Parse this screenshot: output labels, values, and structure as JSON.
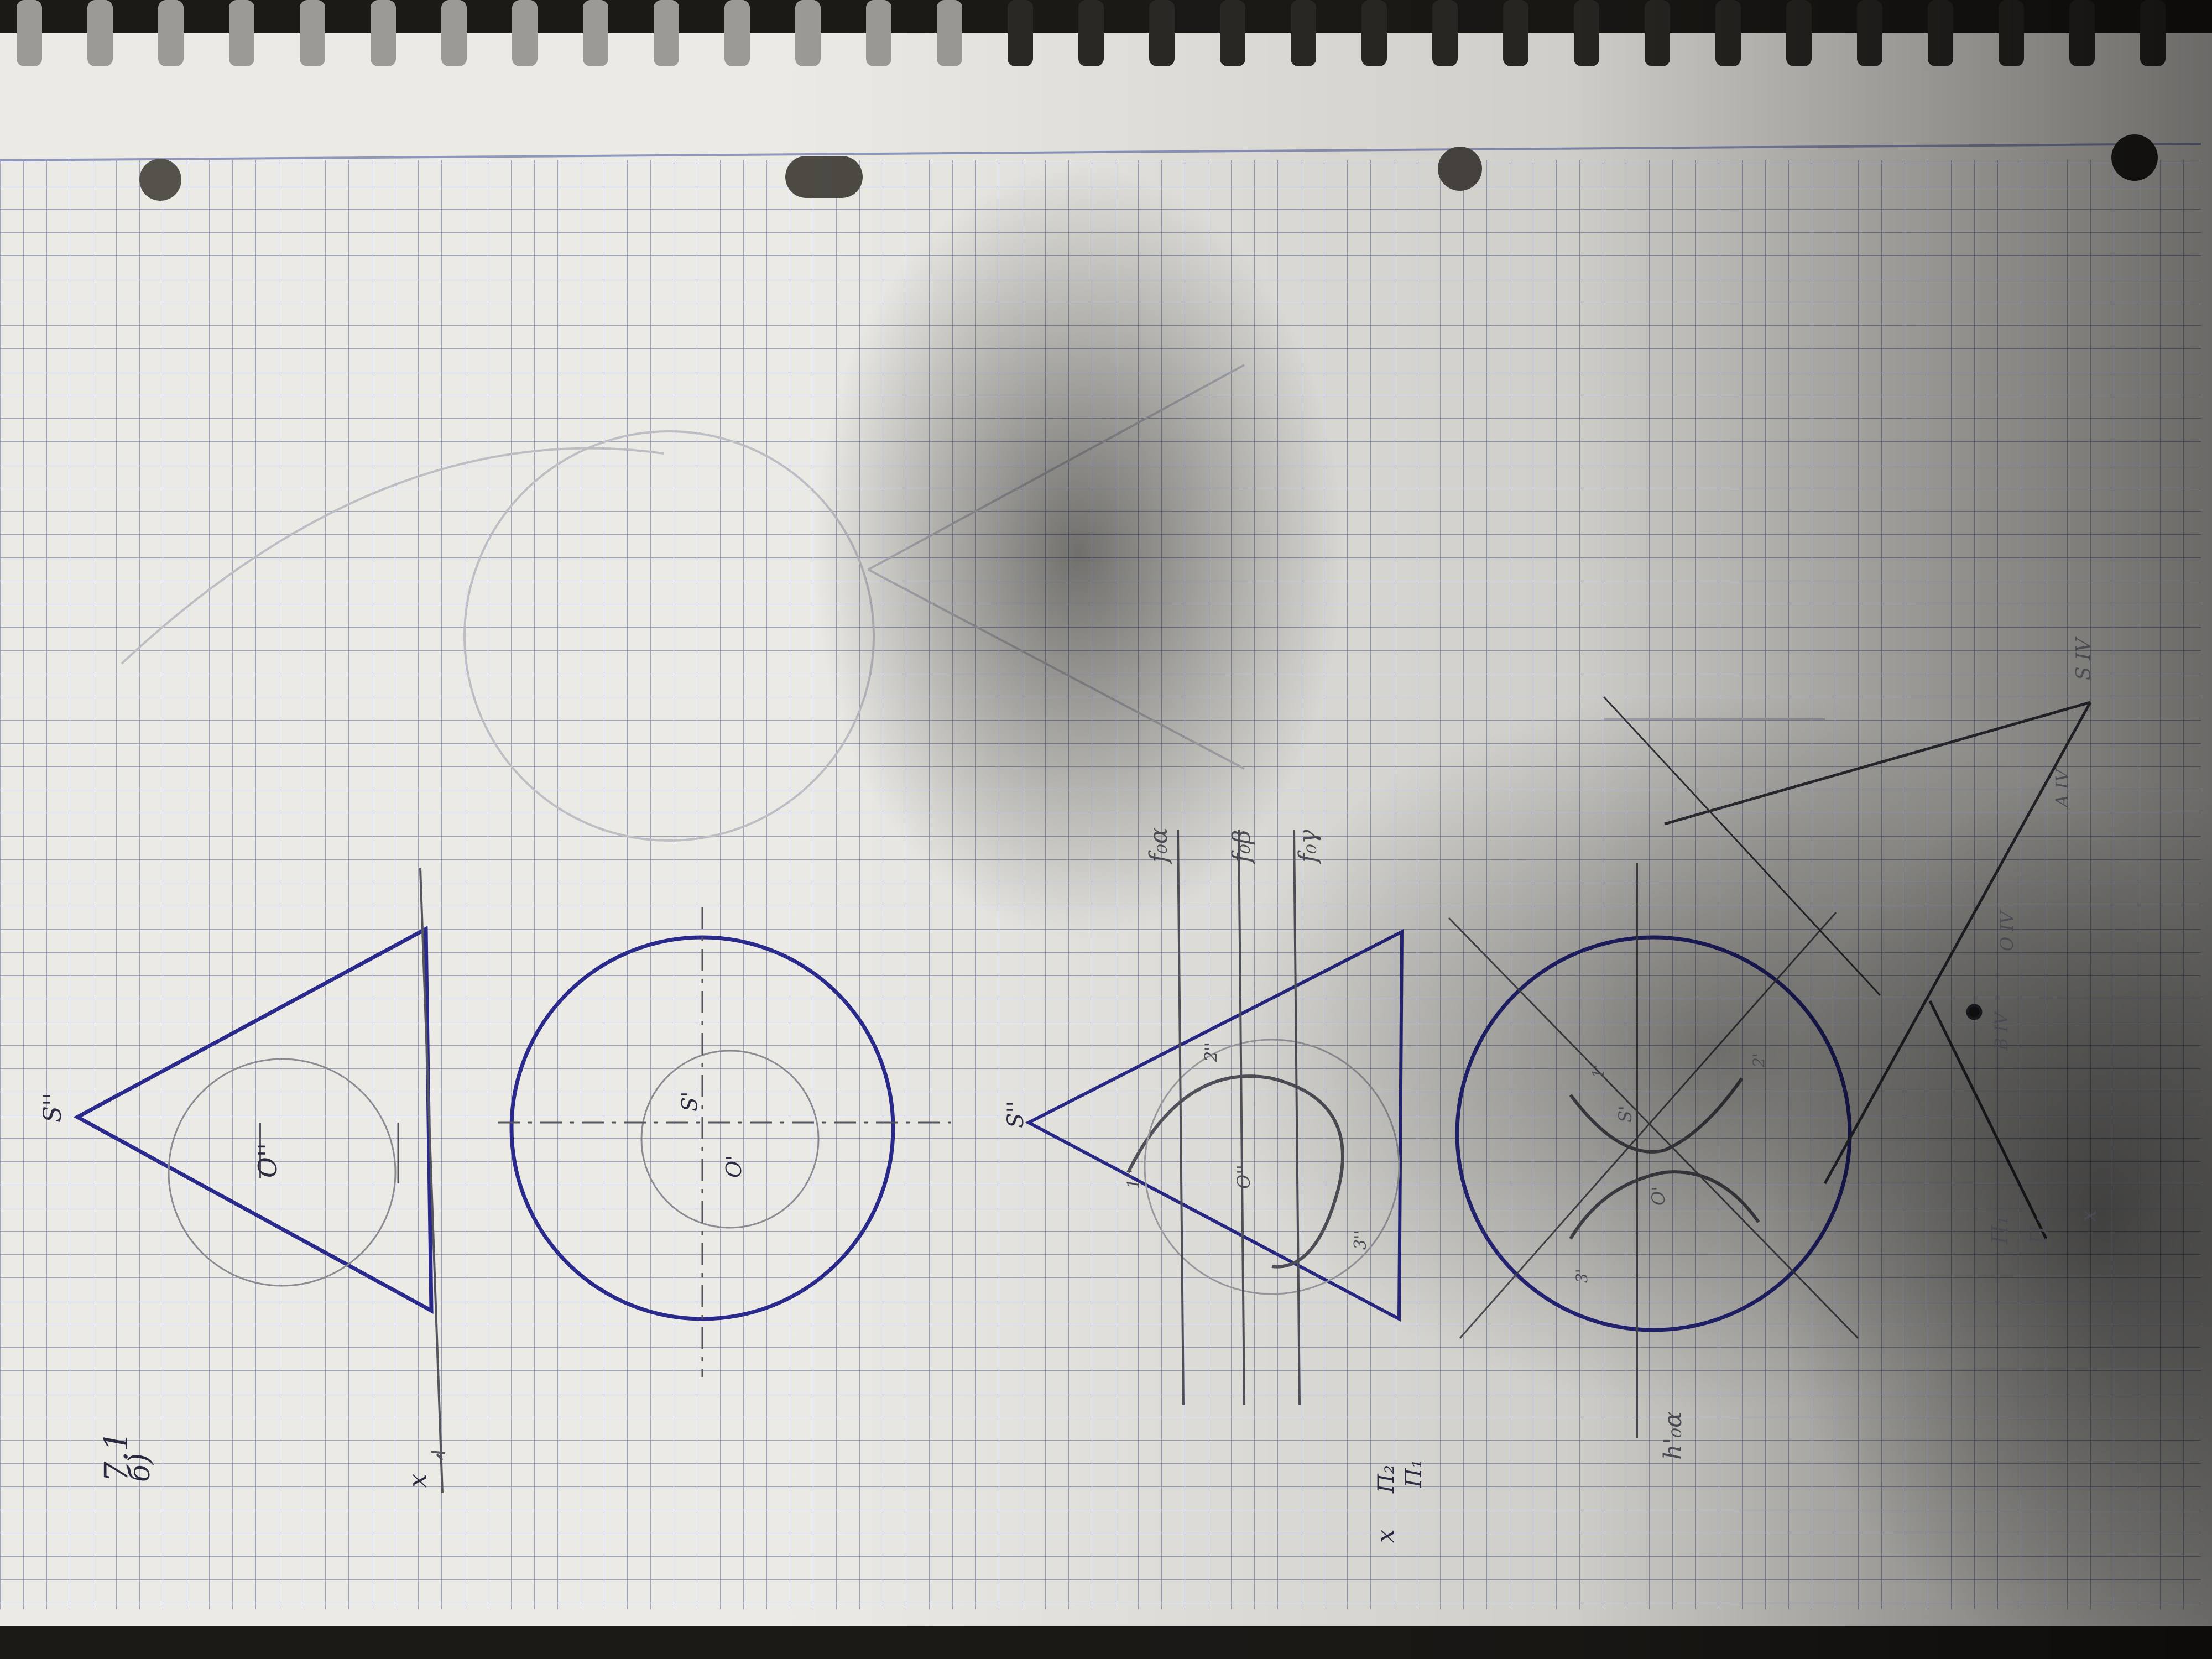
{
  "photo": {
    "subject": "spiral notebook with descriptive geometry construction drawings",
    "palette": {
      "paper": "#eceae4",
      "grid": "#9aa3c6",
      "ink": "#2a2a8c",
      "pencil": "#55555e",
      "shadow": "#3c3a36",
      "background": "#1c1a17"
    }
  },
  "labels": {
    "problem_number": "7.1",
    "variant": "б)",
    "s2_top": "S''",
    "o2_top": "O''",
    "s1_top": "S'",
    "o1_top": "O'",
    "axis_top": "x",
    "s2_bottom": "S''",
    "pts_2": "2''",
    "pts_3": "3''",
    "pts_1": "1''",
    "o2_bottom": "O''",
    "s1_bottom": "S'",
    "o1_bottom": "O'",
    "pts_1p": "1'",
    "pts_2p": "2'",
    "pts_3p": "3'",
    "axis_bottom": "x",
    "pi2": "П₂",
    "pi1": "П₁",
    "f0a": "f₀α",
    "f0b": "f₀β",
    "f0c": "f₀γ",
    "h0": "h'₀α",
    "s4": "S IV",
    "o4": "O IV",
    "a4": "A IV",
    "b4": "B IV",
    "pi1b": "П₁",
    "pi4": "П₄",
    "axis_side": "x"
  }
}
